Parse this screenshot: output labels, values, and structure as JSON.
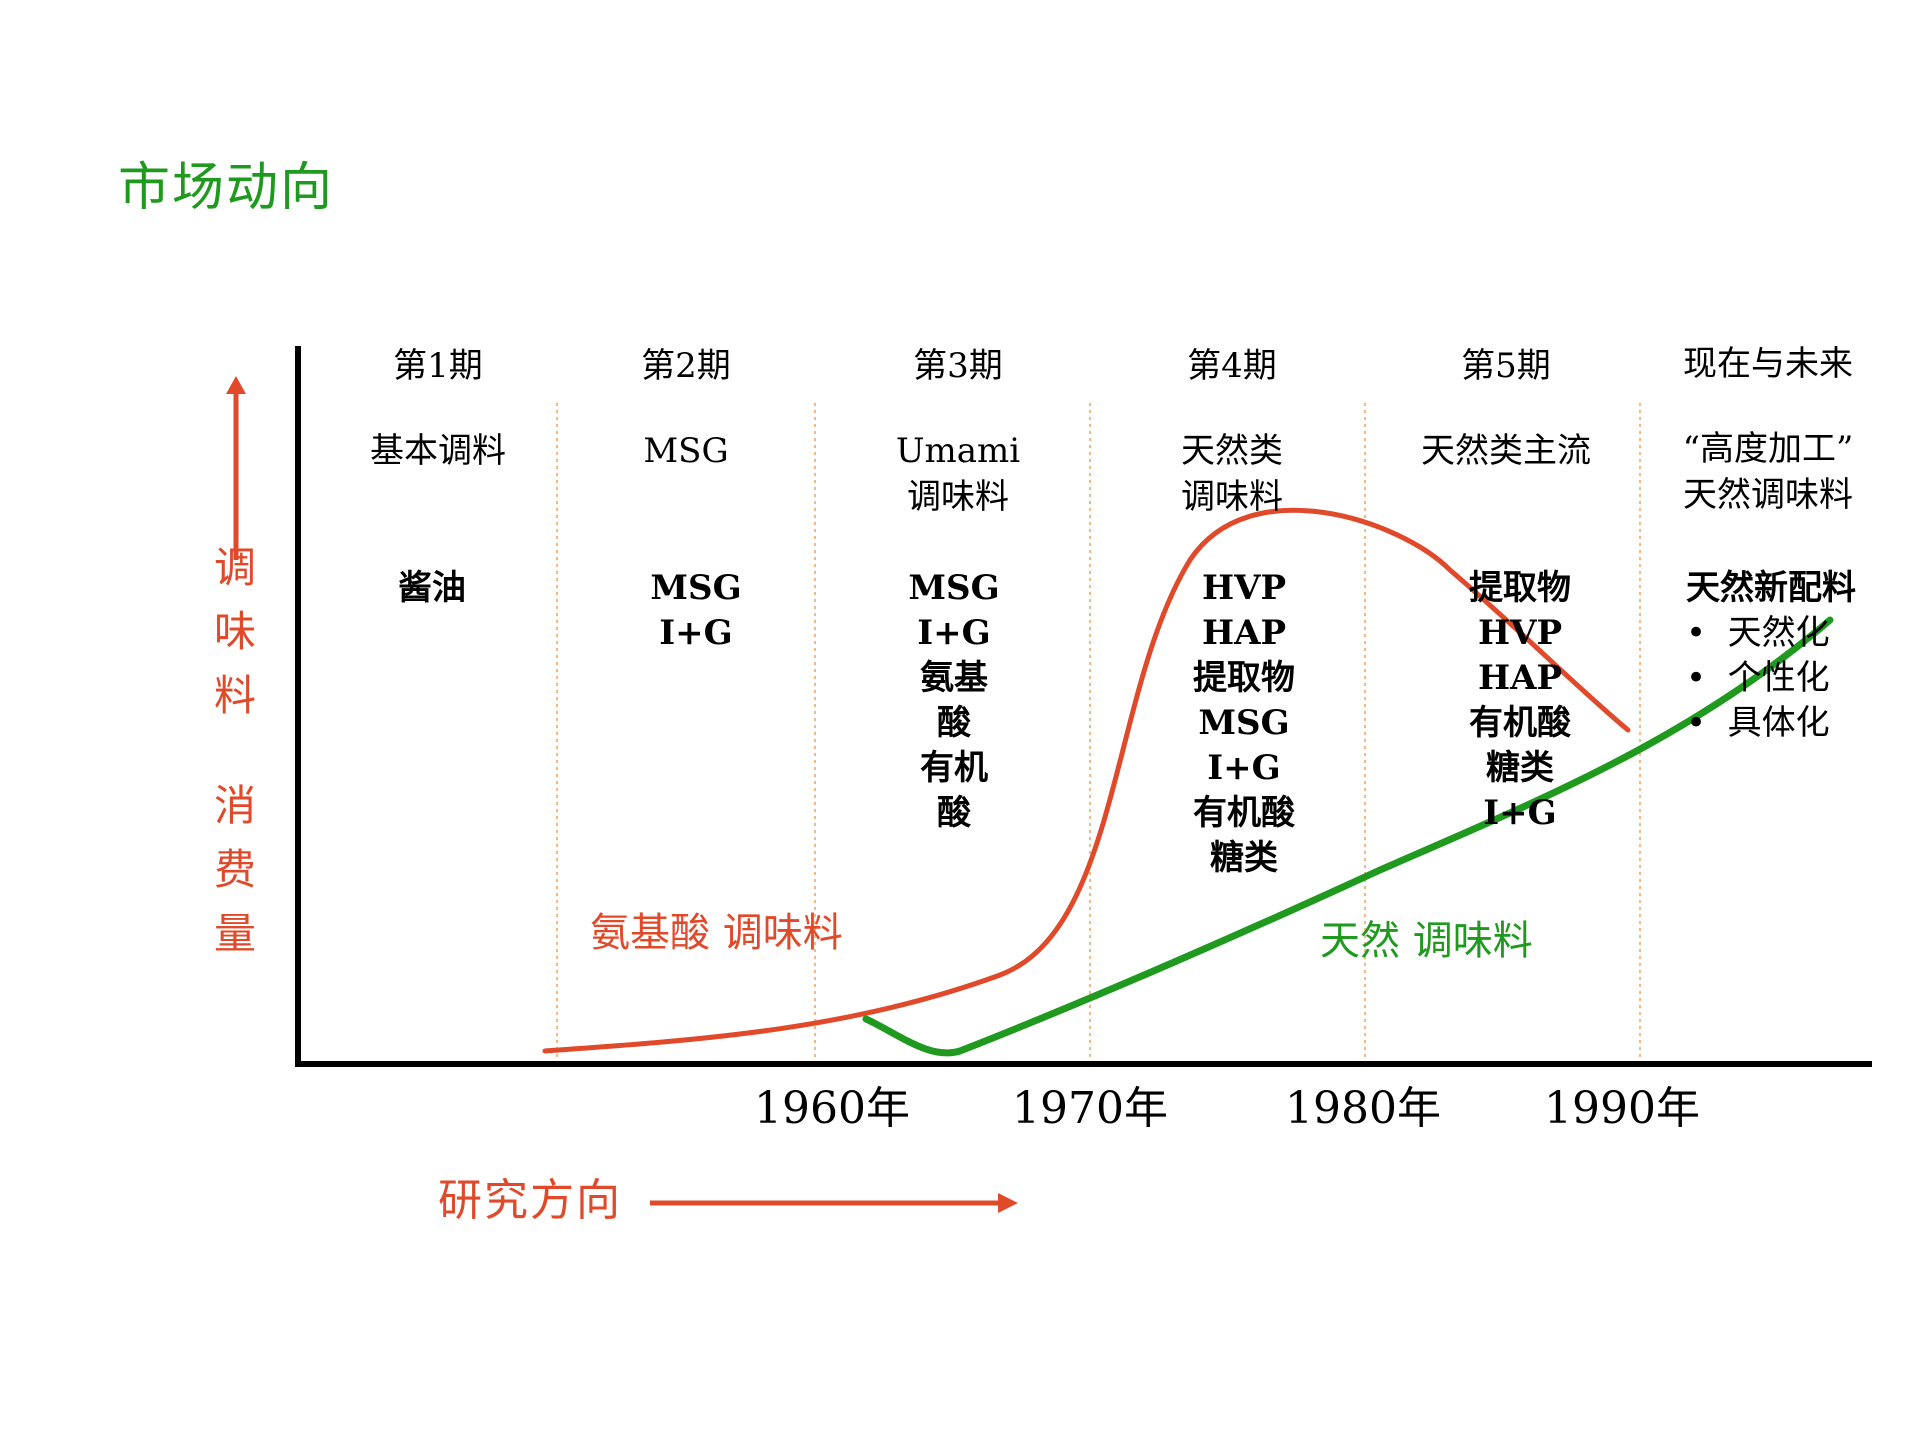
{
  "title": "市场动向",
  "y_axis_label": {
    "line1": [
      "调",
      "味",
      "料"
    ],
    "line2": [
      "消",
      "费",
      "量"
    ]
  },
  "x_axis_label": "研究方向",
  "periods": [
    {
      "label": "第1期",
      "category": [
        "基本调料"
      ],
      "items": [
        "酱油"
      ]
    },
    {
      "label": "第2期",
      "category": [
        "MSG"
      ],
      "items": [
        "MSG",
        "I+G"
      ]
    },
    {
      "label": "第3期",
      "category": [
        "Umami",
        "调味料"
      ],
      "items": [
        "MSG",
        "I+G",
        "氨基",
        "酸",
        "有机",
        "酸"
      ]
    },
    {
      "label": "第4期",
      "category": [
        "天然类",
        "调味料"
      ],
      "items": [
        "HVP",
        "HAP",
        "提取物",
        "MSG",
        "I+G",
        "有机酸",
        "糖类"
      ]
    },
    {
      "label": "第5期",
      "category": [
        "天然类主流"
      ],
      "items": [
        "提取物",
        "HVP",
        "HAP",
        "有机酸",
        "糖类",
        "I+G"
      ]
    },
    {
      "label": "现在与未来",
      "category": [
        "“高度加工”",
        "天然调味料"
      ],
      "items_title": "天然新配料",
      "bullets": [
        "天然化",
        "个性化",
        "具体化"
      ]
    }
  ],
  "years": [
    "1960年",
    "1970年",
    "1980年",
    "1990年"
  ],
  "curves": [
    {
      "name": "氨基酸  调味料",
      "color": "#e04a2a"
    },
    {
      "name": "天然  调味料",
      "color": "#1f9a1f"
    }
  ],
  "colors": {
    "axis": "#000000",
    "divider": "#f0a05a",
    "accent_red": "#e04a2a",
    "accent_green": "#1f9a1f"
  }
}
